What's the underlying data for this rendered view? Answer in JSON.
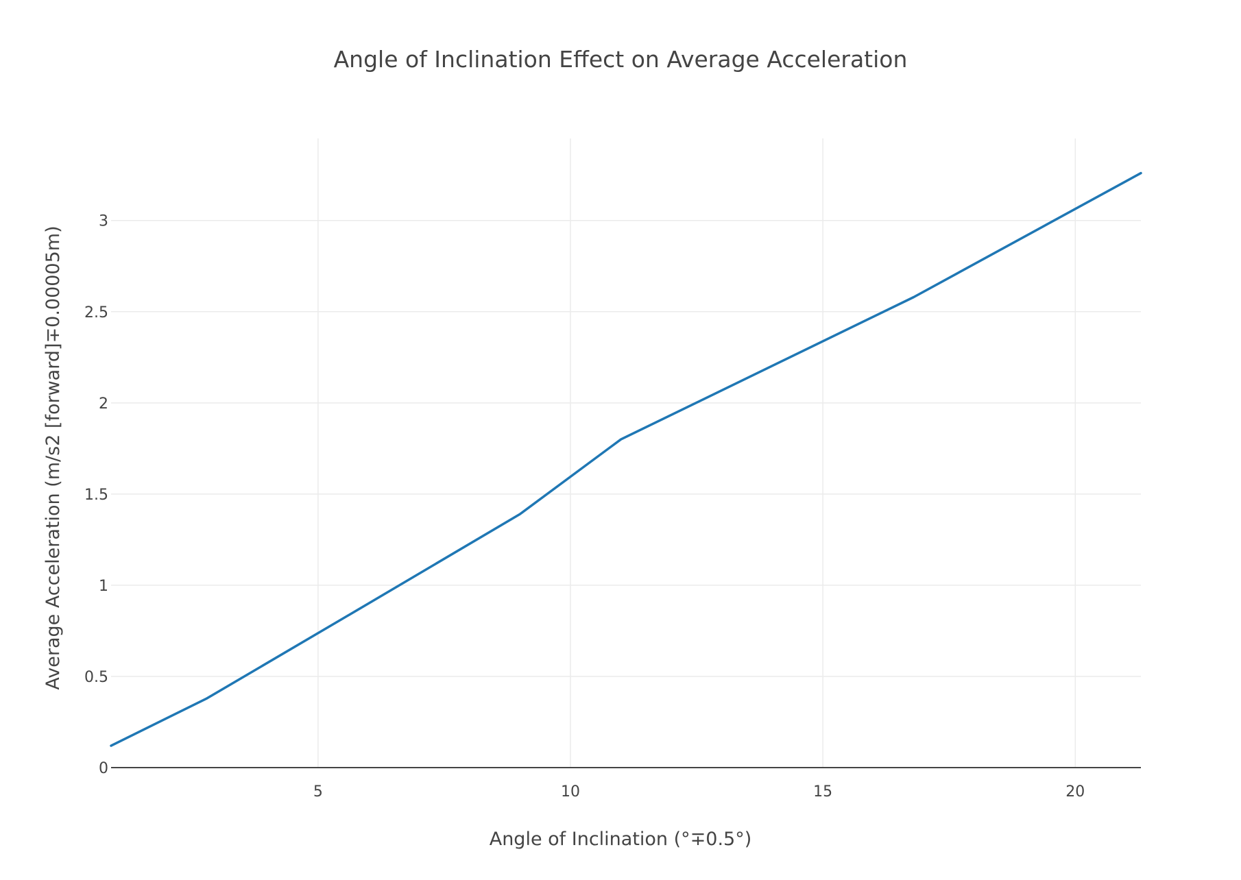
{
  "chart_data": {
    "type": "line",
    "title": "Angle of Inclination Effect on Average Acceleration",
    "xlabel": "Angle of Inclination (°∓0.5°)",
    "ylabel": "Average Acceleration (m/s2 [forward]∓0.00005m)",
    "xlim": [
      0.9,
      21.3
    ],
    "ylim": [
      0,
      3.45
    ],
    "grid": true,
    "legend": "none",
    "x_ticks": [
      5,
      10,
      15,
      20
    ],
    "x_tick_labels": [
      "5",
      "10",
      "15",
      "20"
    ],
    "y_ticks": [
      0,
      0.5,
      1,
      1.5,
      2,
      2.5,
      3
    ],
    "y_tick_labels": [
      "0",
      "0.5",
      "1",
      "1.5",
      "2",
      "2.5",
      "3"
    ],
    "series": [
      {
        "color": "#1f77b4",
        "x": [
          0.9,
          2.8,
          6,
          9,
          11,
          16.8,
          21.3
        ],
        "y": [
          0.12,
          0.38,
          0.9,
          1.39,
          1.8,
          2.58,
          3.26
        ]
      }
    ]
  }
}
